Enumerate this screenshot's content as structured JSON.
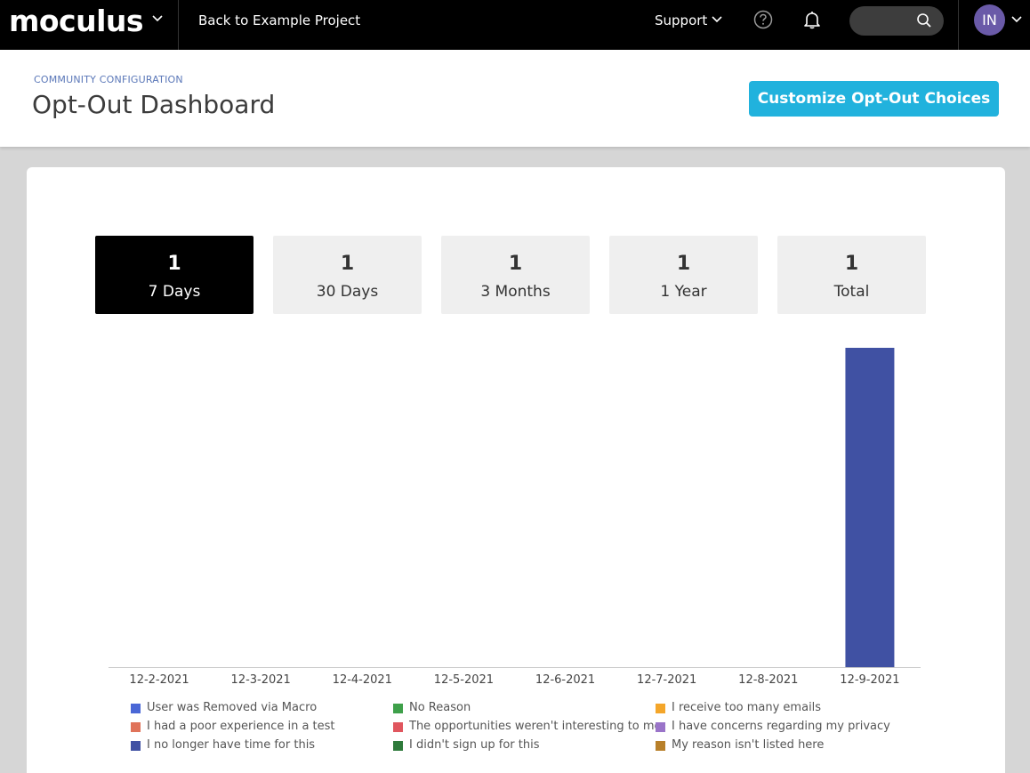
{
  "nav": {
    "logo": "moculus",
    "back_label": "Back to Example Project",
    "support_label": "Support",
    "avatar_initials": "IN",
    "search_placeholder": ""
  },
  "header": {
    "breadcrumb": "COMMUNITY CONFIGURATION",
    "title": "Opt-Out Dashboard",
    "customize_button": "Customize Opt-Out Choices"
  },
  "tiles": [
    {
      "count": "1",
      "label": "7 Days",
      "active": true
    },
    {
      "count": "1",
      "label": "30 Days",
      "active": false
    },
    {
      "count": "1",
      "label": "3 Months",
      "active": false
    },
    {
      "count": "1",
      "label": "1 Year",
      "active": false
    },
    {
      "count": "1",
      "label": "Total",
      "active": false
    }
  ],
  "colors": {
    "accent": "#21b2dd",
    "bar": "#4051a3"
  },
  "chart_data": {
    "type": "bar",
    "stacked": true,
    "categories": [
      "12-2-2021",
      "12-3-2021",
      "12-4-2021",
      "12-5-2021",
      "12-6-2021",
      "12-7-2021",
      "12-8-2021",
      "12-9-2021"
    ],
    "series": [
      {
        "name": "User was Removed via Macro",
        "color": "#4a67d6",
        "values": [
          0,
          0,
          0,
          0,
          0,
          0,
          0,
          0
        ]
      },
      {
        "name": "No Reason",
        "color": "#3ea04a",
        "values": [
          0,
          0,
          0,
          0,
          0,
          0,
          0,
          0
        ]
      },
      {
        "name": "I receive too many emails",
        "color": "#f4a62a",
        "values": [
          0,
          0,
          0,
          0,
          0,
          0,
          0,
          0
        ]
      },
      {
        "name": "I had a poor experience in a test",
        "color": "#e0735a",
        "values": [
          0,
          0,
          0,
          0,
          0,
          0,
          0,
          0
        ]
      },
      {
        "name": "The opportunities weren't interesting to me",
        "color": "#e0565e",
        "values": [
          0,
          0,
          0,
          0,
          0,
          0,
          0,
          0
        ]
      },
      {
        "name": "I have concerns regarding my privacy",
        "color": "#9a74c9",
        "values": [
          0,
          0,
          0,
          0,
          0,
          0,
          0,
          0
        ]
      },
      {
        "name": "I no longer have time for this",
        "color": "#4051a3",
        "values": [
          0,
          0,
          0,
          0,
          0,
          0,
          0,
          1
        ]
      },
      {
        "name": "I didn't sign up for this",
        "color": "#2e7a3b",
        "values": [
          0,
          0,
          0,
          0,
          0,
          0,
          0,
          0
        ]
      },
      {
        "name": "My reason isn't listed here",
        "color": "#b8802a",
        "values": [
          0,
          0,
          0,
          0,
          0,
          0,
          0,
          0
        ]
      }
    ],
    "ylim": [
      0,
      1
    ],
    "legend_position": "bottom",
    "grid": false,
    "title": "",
    "xlabel": "",
    "ylabel": ""
  }
}
